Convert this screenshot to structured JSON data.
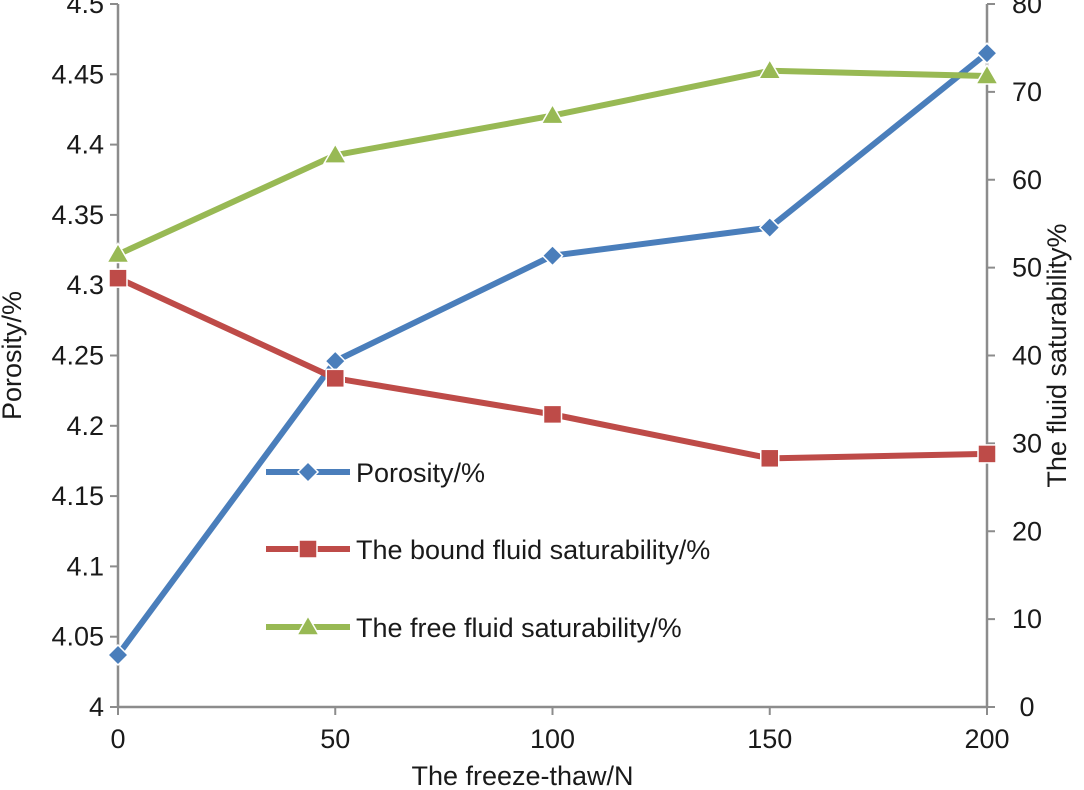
{
  "chart_data": {
    "type": "line",
    "title": "",
    "xlabel": "The freeze-thaw/N",
    "ylabel_left": "Porosity/%",
    "ylabel_right": "The fluid saturability%",
    "x": [
      0,
      50,
      100,
      150,
      200
    ],
    "x_ticks": [
      "0",
      "50",
      "100",
      "150",
      "200"
    ],
    "xlim": [
      0,
      200
    ],
    "ylim_left": [
      4,
      4.5
    ],
    "ylim_right": [
      0,
      80
    ],
    "y_ticks_left": [
      "4",
      "4.05",
      "4.1",
      "4.15",
      "4.2",
      "4.25",
      "4.3",
      "4.35",
      "4.4",
      "4.45",
      "4.5"
    ],
    "y_ticks_right": [
      "0",
      "10",
      "20",
      "30",
      "40",
      "50",
      "60",
      "70",
      "80"
    ],
    "grid": false,
    "legend_position": "center-left",
    "series": [
      {
        "name": "Porosity/%",
        "axis": "left",
        "color": "#4a7ebb",
        "marker": "diamond",
        "values": [
          4.037,
          4.246,
          4.321,
          4.341,
          4.465
        ]
      },
      {
        "name": "The bound fluid saturability/%",
        "axis": "right",
        "color": "#be4b48",
        "marker": "square",
        "values": [
          48.8,
          37.4,
          33.3,
          28.3,
          28.8
        ]
      },
      {
        "name": "The free fluid saturability/%",
        "axis": "right",
        "color": "#98b954",
        "marker": "triangle",
        "values": [
          51.5,
          62.8,
          67.3,
          72.4,
          71.8
        ]
      }
    ]
  }
}
